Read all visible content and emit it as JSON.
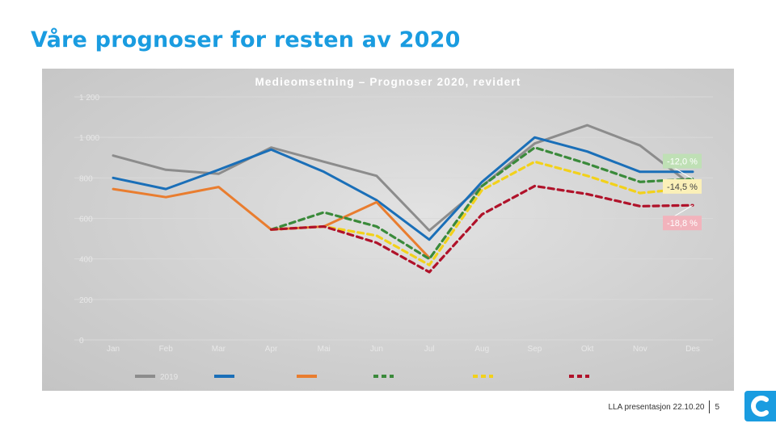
{
  "slide": {
    "title": "Våre prognoser for resten av 2020",
    "footer_text": "LLA presentasjon 22.10.20",
    "page_number": "5",
    "accent": "#1a9ce0"
  },
  "chart_data": {
    "type": "line",
    "title": "Medieomsetning – Prognoser 2020, revidert",
    "categories": [
      "Jan",
      "Feb",
      "Mar",
      "Apr",
      "Mai",
      "Jun",
      "Jul",
      "Aug",
      "Sep",
      "Okt",
      "Nov",
      "Des"
    ],
    "ylim": [
      0,
      1200
    ],
    "yticks": [
      0,
      200,
      400,
      600,
      800,
      1000,
      1200
    ],
    "grid": true,
    "legend_position": "bottom",
    "series": [
      {
        "name": "2019",
        "color": "#8c8c8c",
        "dashed": false,
        "values": [
          910,
          840,
          820,
          950,
          880,
          810,
          540,
          760,
          970,
          1060,
          960,
          760
        ]
      },
      {
        "name": "",
        "color": "#1a6fb8",
        "dashed": false,
        "values": [
          800,
          745,
          840,
          940,
          830,
          690,
          495,
          780,
          1000,
          930,
          830,
          830
        ]
      },
      {
        "name": "",
        "color": "#e97d2f",
        "dashed": false,
        "values": [
          745,
          705,
          755,
          545,
          560,
          680,
          405,
          null,
          null,
          null,
          null,
          null
        ]
      },
      {
        "name": "",
        "color": "#3a8a3a",
        "dashed": true,
        "values": [
          null,
          null,
          null,
          545,
          630,
          560,
          400,
          760,
          950,
          870,
          780,
          795
        ]
      },
      {
        "name": "",
        "color": "#f2d11a",
        "dashed": true,
        "values": [
          null,
          null,
          null,
          545,
          560,
          515,
          370,
          740,
          880,
          810,
          725,
          750
        ]
      },
      {
        "name": "",
        "color": "#b0122a",
        "dashed": true,
        "values": [
          null,
          null,
          null,
          545,
          560,
          480,
          335,
          620,
          760,
          720,
          660,
          665
        ]
      }
    ],
    "annotations": [
      {
        "text": "-12,0 %",
        "series": 3,
        "bg": "#bfe0b5",
        "color": "#ffffff"
      },
      {
        "text": "-14,5 %",
        "series": 4,
        "bg": "#fbf0b8",
        "color": "#444444"
      },
      {
        "text": "-18,8 %",
        "series": 5,
        "bg": "#f2b3bc",
        "color": "#ffffff"
      }
    ]
  }
}
